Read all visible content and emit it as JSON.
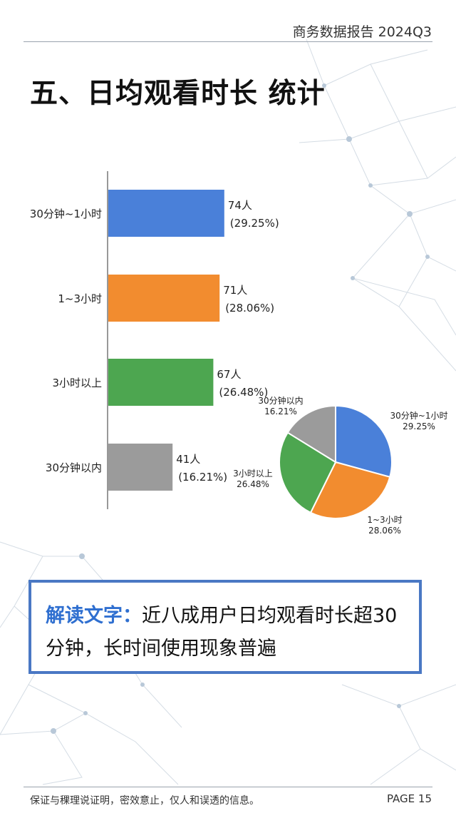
{
  "header": {
    "report_label": "商务数据报告 2024Q3"
  },
  "title": "五、日均观看时长 统计",
  "note": {
    "label": "解读文字：",
    "text": "近八成用户日均观看时长超30分钟，长时间使用现象普遍"
  },
  "footer": {
    "text": "保证与稞理说证明，密效意止，仅人和误透的信息。",
    "page": "PAGE 15"
  },
  "colors": {
    "blue": "#4a80d9",
    "orange": "#f28c2f",
    "green": "#4da650",
    "gray": "#9b9b9b",
    "accent": "#2f6fd0"
  },
  "chart_data": [
    {
      "type": "bar",
      "orientation": "horizontal",
      "categories": [
        "30分钟~1小时",
        "1~3小时",
        "3小时以上",
        "30分钟以内"
      ],
      "values": [
        74,
        71,
        67,
        41
      ],
      "value_labels": [
        "74人",
        "71人",
        "67人",
        "41人"
      ],
      "percent_labels": [
        "(29.25%)",
        "(28.06%)",
        "(26.48%)",
        "(16.21%)"
      ],
      "colors": [
        "#4a80d9",
        "#f28c2f",
        "#4da650",
        "#9b9b9b"
      ],
      "xlim": [
        0,
        100
      ]
    },
    {
      "type": "pie",
      "labels": [
        "30分钟~1小时",
        "1~3小时",
        "3小时以上",
        "30分钟以内"
      ],
      "values": [
        29.25,
        28.06,
        26.48,
        16.21
      ],
      "percent_labels": [
        "29.25%",
        "28.06%",
        "26.48%",
        "16.21%"
      ],
      "colors": [
        "#4a80d9",
        "#f28c2f",
        "#4da650",
        "#9b9b9b"
      ],
      "start_angle_deg": 0,
      "direction": "clockwise"
    }
  ]
}
